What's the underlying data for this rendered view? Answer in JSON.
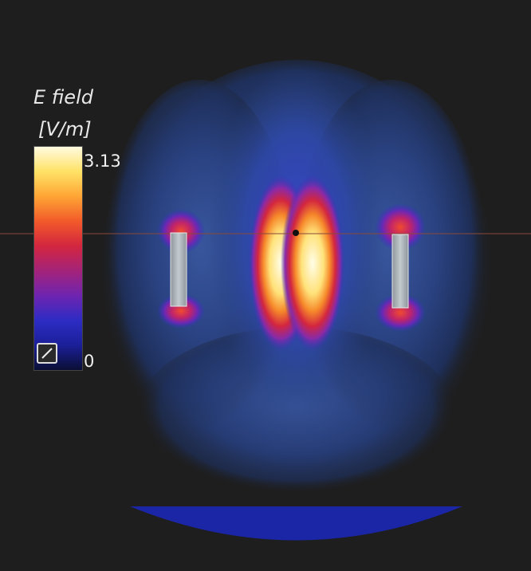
{
  "colorbar": {
    "title_line1": "E field",
    "title_line2": "[V/m]",
    "max_label": "3.13",
    "min_label": "0",
    "stops": [
      "#fffbe0",
      "#ffe266",
      "#ffa535",
      "#f25a2a",
      "#d3263f",
      "#a4237a",
      "#6f24b0",
      "#2d2cc4",
      "#1b1f98",
      "#0a0f35"
    ]
  },
  "colors": {
    "background": "#1e1e1e",
    "crosshair": "#8a4a3a",
    "probe_bar": "#a9b0b5",
    "base_plate": "#1b26a6"
  },
  "icons": {
    "scale_toggle": "scale-toggle-icon"
  }
}
